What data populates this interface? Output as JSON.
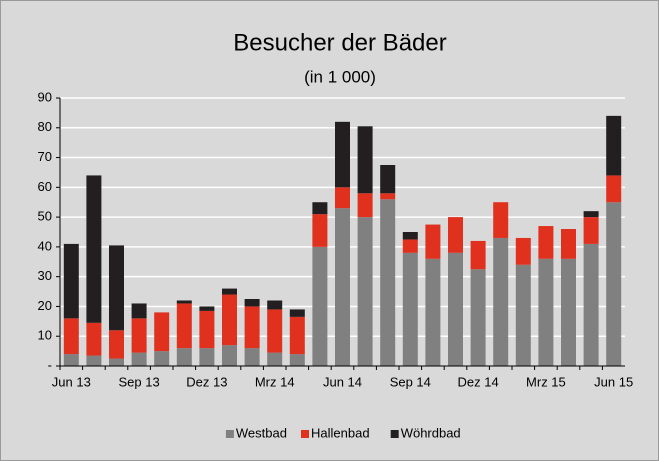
{
  "chart_data": {
    "type": "stacked_bar",
    "title": "Besucher der Bäder",
    "subtitle": "(in 1 000)",
    "categories": [
      "Jun 13",
      null,
      null,
      "Sep 13",
      null,
      null,
      "Dez 13",
      null,
      null,
      "Mrz 14",
      null,
      null,
      "Jun 14",
      null,
      null,
      "Sep 14",
      null,
      null,
      "Dez 14",
      null,
      null,
      "Mrz 15",
      null,
      null,
      "Jun 15"
    ],
    "series": [
      {
        "name": "Westbad",
        "color": "#808080",
        "values": [
          4,
          3.5,
          2.5,
          4.5,
          5,
          6,
          6,
          7,
          6,
          4.5,
          4,
          40,
          53,
          50,
          56,
          38,
          36,
          38,
          32.5,
          43,
          34,
          36,
          36,
          41,
          55
        ]
      },
      {
        "name": "Hallenbad",
        "color": "#e0301e",
        "values": [
          12,
          11,
          9.5,
          11.5,
          13,
          15,
          12.5,
          17,
          14,
          14.5,
          12.5,
          11,
          7,
          8,
          2,
          4.5,
          11.5,
          12,
          9.5,
          12,
          9,
          11,
          10,
          9,
          9
        ]
      },
      {
        "name": "Wöhrdbad",
        "color": "#231f20",
        "values": [
          25,
          49.5,
          28.5,
          5,
          0,
          1,
          1.5,
          2,
          2.5,
          3,
          2.5,
          4,
          22,
          22.5,
          9.5,
          2.5,
          0,
          0,
          0,
          0,
          0,
          0,
          0,
          2,
          20
        ]
      }
    ],
    "ylim": [
      0,
      90
    ],
    "yticks": [
      {
        "value": 0,
        "label": "-"
      },
      10,
      20,
      30,
      40,
      50,
      60,
      70,
      80,
      90
    ],
    "grid": true,
    "legend": "bottom"
  }
}
